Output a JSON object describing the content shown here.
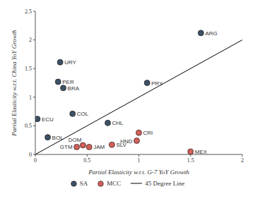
{
  "chart_data": {
    "type": "scatter",
    "x_label": "Partial Elasticity w.r.t. G-7 YoY Growth",
    "y_label": "Partial Elasticity w.r.t. China YoY Growth",
    "xlim": [
      0,
      2
    ],
    "xticks": [
      0,
      0.5,
      1,
      1.5,
      2
    ],
    "ylim": [
      0,
      2.5
    ],
    "yticks": [
      0,
      0.5,
      1,
      1.5,
      2,
      2.5
    ],
    "grid": false,
    "legend": "bottom",
    "series": [
      {
        "name": "SA",
        "color": "#3e5266",
        "marker": "circle",
        "labels": [
          "ARG",
          "URY",
          "PER",
          "BRA",
          "PRY",
          "COL",
          "CHL",
          "ECU",
          "BOL"
        ],
        "x": [
          1.6,
          0.24,
          0.22,
          0.27,
          1.08,
          0.36,
          0.7,
          0.02,
          0.12
        ],
        "values": [
          2.12,
          1.61,
          1.27,
          1.16,
          1.25,
          0.71,
          0.55,
          0.62,
          0.3
        ]
      },
      {
        "name": "MCC",
        "color": "#d4605a",
        "marker": "circle",
        "labels": [
          "CRI",
          "HND",
          "MEX",
          "SLV",
          "DOM",
          "JAM",
          "GTM"
        ],
        "x": [
          1.0,
          0.98,
          1.5,
          0.74,
          0.46,
          0.52,
          0.4
        ],
        "values": [
          0.38,
          0.24,
          0.05,
          0.17,
          0.16,
          0.13,
          0.13
        ]
      },
      {
        "name": "45 Degree Line",
        "type": "line",
        "color": "#000000",
        "line_style": "solid",
        "x": [
          0,
          2
        ],
        "values": [
          0,
          2
        ]
      }
    ]
  }
}
